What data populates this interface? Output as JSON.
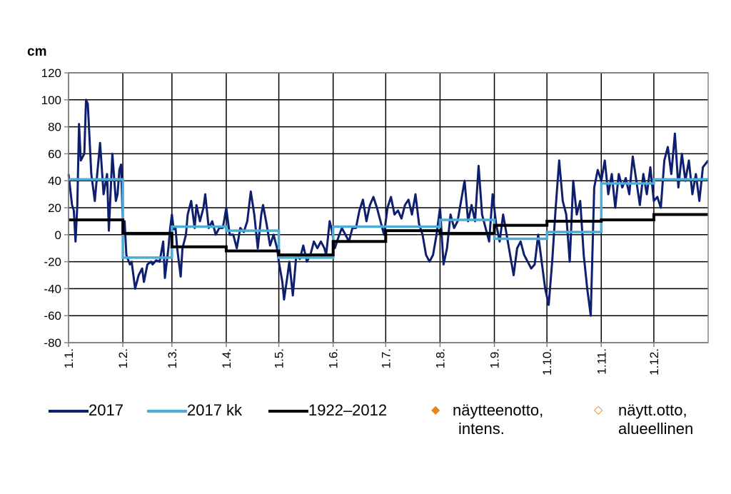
{
  "chart_data": {
    "type": "line",
    "y_unit_label": "cm",
    "ylim": [
      -80,
      120
    ],
    "y_ticks": [
      "120",
      "100",
      "80",
      "60",
      "40",
      "20",
      "0",
      "-20",
      "-40",
      "-60",
      "-80"
    ],
    "x_ticks": [
      "1.1.",
      "1.2.",
      "1.3.",
      "1.4.",
      "1.5.",
      "1.6.",
      "1.7.",
      "1.8.",
      "1.9.",
      "1.10.",
      "1.11.",
      "1.12."
    ],
    "x_range_days": [
      0,
      365
    ],
    "grid": true,
    "legend_position": "bottom",
    "series": [
      {
        "name": "2017",
        "color": "#0d1f6e",
        "style": "daily",
        "points": [
          [
            0,
            45
          ],
          [
            2,
            22
          ],
          [
            3,
            18
          ],
          [
            4,
            -5
          ],
          [
            5,
            22
          ],
          [
            6,
            82
          ],
          [
            7,
            55
          ],
          [
            9,
            60
          ],
          [
            10,
            100
          ],
          [
            11,
            97
          ],
          [
            13,
            45
          ],
          [
            15,
            25
          ],
          [
            16,
            40
          ],
          [
            18,
            68
          ],
          [
            20,
            30
          ],
          [
            22,
            45
          ],
          [
            23,
            3
          ],
          [
            25,
            60
          ],
          [
            27,
            25
          ],
          [
            28,
            30
          ],
          [
            29,
            48
          ],
          [
            30,
            52
          ],
          [
            31,
            8
          ],
          [
            32,
            10
          ],
          [
            33,
            -15
          ],
          [
            35,
            -22
          ],
          [
            36,
            -20
          ],
          [
            38,
            -40
          ],
          [
            40,
            -30
          ],
          [
            42,
            -25
          ],
          [
            43,
            -35
          ],
          [
            45,
            -22
          ],
          [
            47,
            -20
          ],
          [
            48,
            -22
          ],
          [
            50,
            -19
          ],
          [
            52,
            -20
          ],
          [
            54,
            -5
          ],
          [
            55,
            -32
          ],
          [
            57,
            -10
          ],
          [
            58,
            5
          ],
          [
            59,
            15
          ],
          [
            60,
            4
          ],
          [
            61,
            6
          ],
          [
            62,
            -10
          ],
          [
            64,
            -31
          ],
          [
            65,
            -10
          ],
          [
            67,
            0
          ],
          [
            68,
            15
          ],
          [
            69,
            20
          ],
          [
            70,
            25
          ],
          [
            72,
            5
          ],
          [
            73,
            22
          ],
          [
            75,
            10
          ],
          [
            77,
            20
          ],
          [
            78,
            30
          ],
          [
            80,
            5
          ],
          [
            82,
            10
          ],
          [
            84,
            0
          ],
          [
            86,
            5
          ],
          [
            88,
            5
          ],
          [
            89,
            12
          ],
          [
            90,
            20
          ],
          [
            92,
            0
          ],
          [
            94,
            0
          ],
          [
            96,
            -10
          ],
          [
            98,
            5
          ],
          [
            100,
            2
          ],
          [
            102,
            10
          ],
          [
            104,
            32
          ],
          [
            106,
            15
          ],
          [
            108,
            -10
          ],
          [
            110,
            15
          ],
          [
            111,
            22
          ],
          [
            113,
            8
          ],
          [
            115,
            -8
          ],
          [
            117,
            0
          ],
          [
            119,
            -10
          ],
          [
            120,
            -20
          ],
          [
            122,
            -35
          ],
          [
            123,
            -48
          ],
          [
            125,
            -30
          ],
          [
            126,
            -20
          ],
          [
            128,
            -45
          ],
          [
            130,
            -15
          ],
          [
            132,
            -18
          ],
          [
            134,
            -8
          ],
          [
            136,
            -20
          ],
          [
            138,
            -15
          ],
          [
            140,
            -5
          ],
          [
            142,
            -10
          ],
          [
            144,
            -5
          ],
          [
            146,
            -10
          ],
          [
            147,
            -15
          ],
          [
            149,
            10
          ],
          [
            150,
            5
          ],
          [
            152,
            -10
          ],
          [
            154,
            -2
          ],
          [
            156,
            5
          ],
          [
            158,
            0
          ],
          [
            160,
            -5
          ],
          [
            162,
            5
          ],
          [
            164,
            5
          ],
          [
            166,
            18
          ],
          [
            168,
            26
          ],
          [
            170,
            10
          ],
          [
            172,
            22
          ],
          [
            174,
            28
          ],
          [
            176,
            20
          ],
          [
            178,
            10
          ],
          [
            180,
            0
          ],
          [
            182,
            20
          ],
          [
            184,
            28
          ],
          [
            186,
            15
          ],
          [
            188,
            18
          ],
          [
            190,
            12
          ],
          [
            192,
            22
          ],
          [
            194,
            26
          ],
          [
            196,
            15
          ],
          [
            198,
            30
          ],
          [
            200,
            8
          ],
          [
            202,
            0
          ],
          [
            204,
            -15
          ],
          [
            206,
            -20
          ],
          [
            208,
            -15
          ],
          [
            210,
            0
          ],
          [
            212,
            20
          ],
          [
            214,
            -22
          ],
          [
            216,
            -10
          ],
          [
            218,
            15
          ],
          [
            220,
            5
          ],
          [
            222,
            10
          ],
          [
            224,
            25
          ],
          [
            226,
            40
          ],
          [
            228,
            10
          ],
          [
            230,
            22
          ],
          [
            232,
            10
          ],
          [
            234,
            51
          ],
          [
            236,
            15
          ],
          [
            238,
            5
          ],
          [
            240,
            -5
          ],
          [
            242,
            30
          ],
          [
            244,
            8
          ],
          [
            246,
            -5
          ],
          [
            248,
            15
          ],
          [
            250,
            0
          ],
          [
            252,
            -15
          ],
          [
            254,
            -30
          ],
          [
            256,
            -10
          ],
          [
            258,
            -5
          ],
          [
            260,
            -15
          ],
          [
            262,
            -20
          ],
          [
            264,
            -25
          ],
          [
            266,
            -22
          ],
          [
            268,
            0
          ],
          [
            270,
            -20
          ],
          [
            272,
            -40
          ],
          [
            274,
            -52
          ],
          [
            276,
            -20
          ],
          [
            278,
            20
          ],
          [
            280,
            55
          ],
          [
            282,
            25
          ],
          [
            284,
            15
          ],
          [
            286,
            -20
          ],
          [
            288,
            40
          ],
          [
            290,
            15
          ],
          [
            292,
            25
          ],
          [
            294,
            -15
          ],
          [
            296,
            -40
          ],
          [
            298,
            -60
          ],
          [
            300,
            35
          ],
          [
            302,
            48
          ],
          [
            304,
            40
          ],
          [
            306,
            55
          ],
          [
            308,
            30
          ],
          [
            310,
            45
          ],
          [
            312,
            20
          ],
          [
            314,
            45
          ],
          [
            316,
            35
          ],
          [
            318,
            42
          ],
          [
            320,
            30
          ],
          [
            322,
            58
          ],
          [
            324,
            40
          ],
          [
            326,
            22
          ],
          [
            328,
            45
          ],
          [
            330,
            30
          ],
          [
            332,
            50
          ],
          [
            334,
            25
          ],
          [
            336,
            28
          ],
          [
            338,
            20
          ],
          [
            340,
            55
          ],
          [
            342,
            65
          ],
          [
            344,
            45
          ],
          [
            346,
            75
          ],
          [
            348,
            35
          ],
          [
            350,
            60
          ],
          [
            352,
            40
          ],
          [
            354,
            55
          ],
          [
            356,
            30
          ],
          [
            358,
            45
          ],
          [
            360,
            25
          ],
          [
            362,
            50
          ],
          [
            365,
            55
          ]
        ]
      },
      {
        "name": "2017 kk",
        "color": "#4bacd6",
        "style": "monthly",
        "months": [
          41,
          -17,
          6,
          3,
          -17,
          6,
          6,
          11,
          -3,
          2,
          38,
          41
        ]
      },
      {
        "name": "1922–2012",
        "color": "#000000",
        "style": "monthly",
        "months": [
          11,
          1,
          -9,
          -12,
          -15,
          -5,
          3,
          1,
          7,
          10,
          11,
          15
        ]
      },
      {
        "name": "näytteenotto, intens.",
        "color": "#e8861e",
        "style": "marker-filled",
        "points": []
      },
      {
        "name": "näytt.otto, alueellinen",
        "color": "#e8861e",
        "style": "marker-hollow",
        "points": []
      }
    ]
  },
  "legend": {
    "items": [
      {
        "label_lines": [
          "2017"
        ]
      },
      {
        "label_lines": [
          "2017 kk"
        ]
      },
      {
        "label_lines": [
          "1922–2012"
        ]
      },
      {
        "label_lines": [
          "näytteenotto,",
          "intens."
        ]
      },
      {
        "label_lines": [
          "näytt.otto,",
          "alueellinen"
        ]
      }
    ]
  }
}
